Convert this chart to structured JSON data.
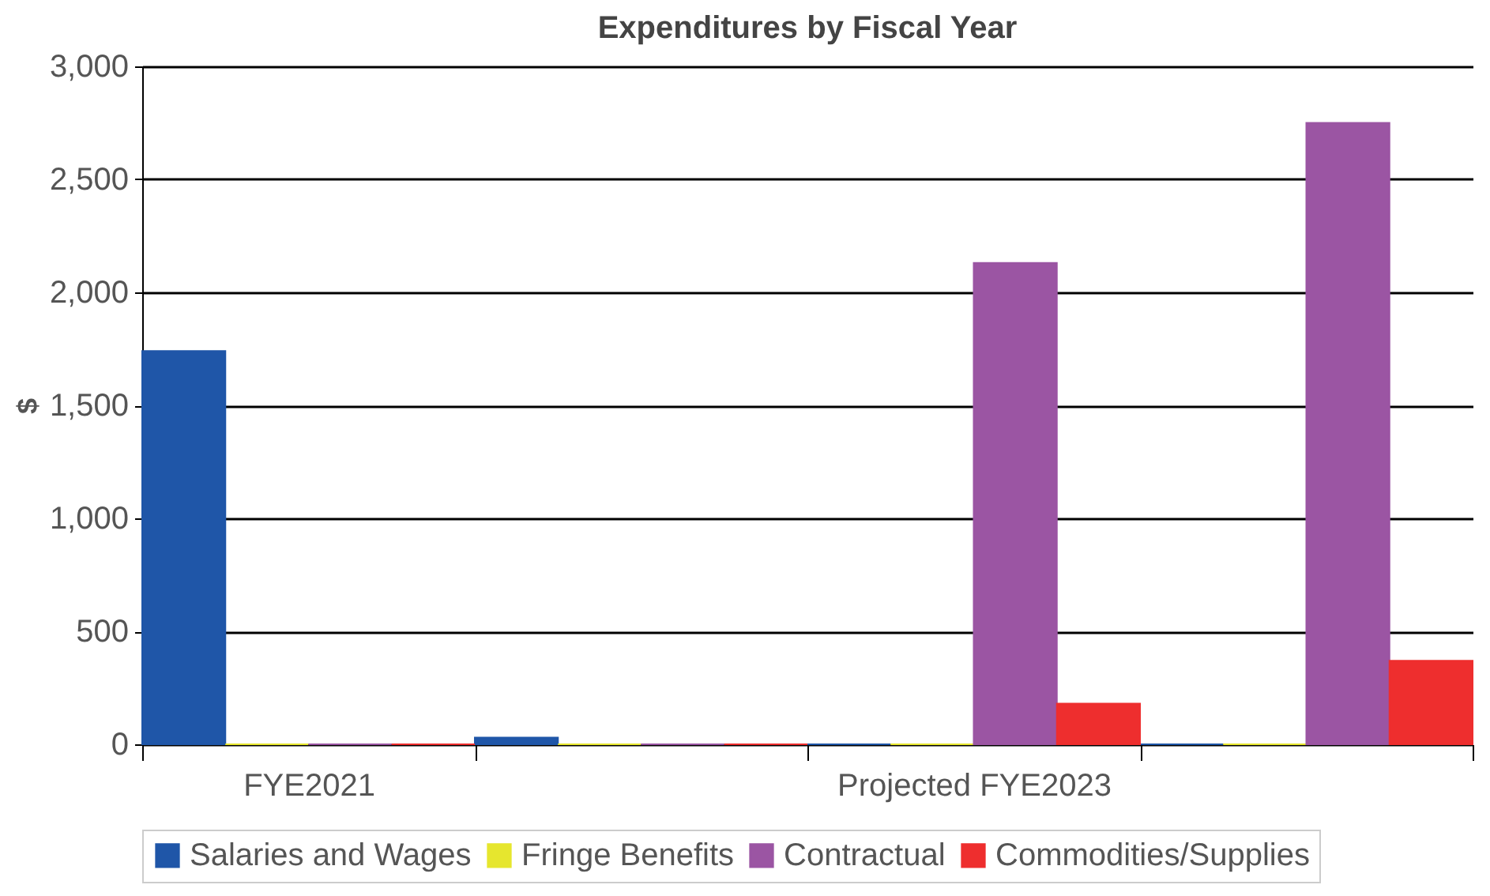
{
  "chart_data": {
    "type": "bar",
    "title": "Expenditures by Fiscal Year",
    "ylabel": "$",
    "categories": [
      "FYE2021",
      null,
      "Projected FYE2023",
      null
    ],
    "series": [
      {
        "name": "Salaries and Wages",
        "color": "#1f56a8",
        "values": [
          1740,
          30,
          0,
          0
        ]
      },
      {
        "name": "Fringe Benefits",
        "color": "#e6e62e",
        "values": [
          0,
          0,
          0,
          0
        ]
      },
      {
        "name": "Contractual",
        "color": "#9b55a3",
        "values": [
          0,
          0,
          2130,
          2750
        ]
      },
      {
        "name": "Commodities/Supplies",
        "color": "#ee2e2e",
        "values": [
          0,
          0,
          180,
          370
        ]
      }
    ],
    "ylim": [
      0,
      3000
    ],
    "yticks": [
      0,
      500,
      {
        "value": 1000,
        "label": "1,000"
      },
      {
        "value": 1500,
        "label": "1,500"
      },
      {
        "value": 2000,
        "label": "2,000"
      },
      {
        "value": 2500,
        "label": "2,500"
      },
      {
        "value": 3000,
        "label": "3,000"
      }
    ],
    "grid": "y",
    "legend": "bottom"
  }
}
